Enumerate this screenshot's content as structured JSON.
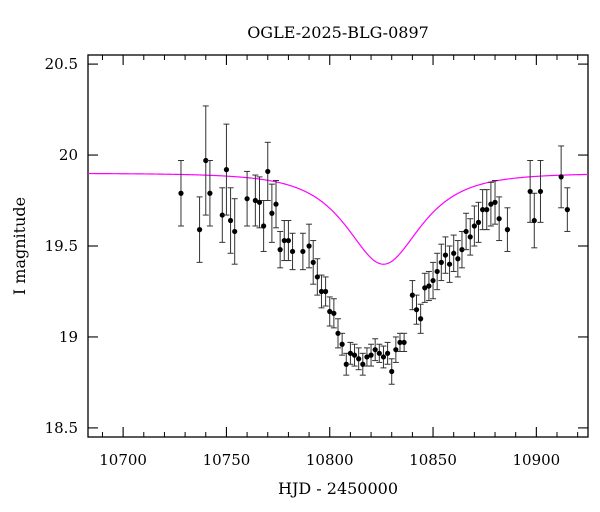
{
  "chart_data": {
    "type": "scatter",
    "title": "OGLE-2025-BLG-0897",
    "xlabel": "HJD - 2450000",
    "ylabel": "I magnitude",
    "xlim": [
      10683,
      10925
    ],
    "ylim": [
      20.55,
      18.45
    ],
    "y_inverted": true,
    "x_ticks": [
      10700,
      10750,
      10800,
      10850,
      10900
    ],
    "y_ticks": [
      18.5,
      19,
      19.5,
      20,
      20.5
    ],
    "x_tick_labels": [
      "10700",
      "10750",
      "10800",
      "10850",
      "10900"
    ],
    "y_tick_labels": [
      "18.5",
      "19",
      "19.5",
      "20",
      "20.5"
    ],
    "grid": false,
    "legend": "none",
    "colors": {
      "data": "#000000",
      "model": "#ff00ff"
    },
    "series": [
      {
        "kind": "data_with_errors",
        "x": [
          10728,
          10737,
          10740,
          10742,
          10748,
          10750,
          10752,
          10754,
          10760,
          10764,
          10766,
          10768,
          10770,
          10772,
          10774,
          10776,
          10778,
          10780,
          10782,
          10787,
          10790,
          10792,
          10794,
          10796,
          10798,
          10800,
          10802,
          10804,
          10806,
          10808,
          10810,
          10812,
          10814,
          10816,
          10818,
          10820,
          10822,
          10824,
          10826,
          10828,
          10830,
          10832,
          10834,
          10836,
          10840,
          10842,
          10844,
          10846,
          10848,
          10850,
          10852,
          10854,
          10856,
          10858,
          10860,
          10862,
          10864,
          10866,
          10868,
          10870,
          10872,
          10874,
          10876,
          10878,
          10880,
          10882,
          10886,
          10897,
          10899,
          10902,
          10912,
          10915
        ],
        "y": [
          19.79,
          19.59,
          19.97,
          19.79,
          19.67,
          19.92,
          19.64,
          19.58,
          19.76,
          19.75,
          19.74,
          19.61,
          19.91,
          19.68,
          19.73,
          19.48,
          19.53,
          19.53,
          19.47,
          19.47,
          19.5,
          19.41,
          19.33,
          19.25,
          19.25,
          19.14,
          19.13,
          19.02,
          18.96,
          18.85,
          18.91,
          18.9,
          18.88,
          18.85,
          18.89,
          18.9,
          18.93,
          18.91,
          18.89,
          18.91,
          18.81,
          18.93,
          18.97,
          18.97,
          19.23,
          19.15,
          19.1,
          19.27,
          19.28,
          19.31,
          19.36,
          19.41,
          19.45,
          19.4,
          19.46,
          19.43,
          19.48,
          19.58,
          19.55,
          19.61,
          19.63,
          19.7,
          19.7,
          19.73,
          19.74,
          19.65,
          19.59,
          19.8,
          19.64,
          19.8,
          19.88,
          19.7
        ],
        "yerr": [
          0.18,
          0.18,
          0.3,
          0.18,
          0.15,
          0.25,
          0.18,
          0.18,
          0.15,
          0.14,
          0.14,
          0.14,
          0.16,
          0.16,
          0.13,
          0.1,
          0.11,
          0.11,
          0.1,
          0.1,
          0.12,
          0.12,
          0.1,
          0.09,
          0.08,
          0.08,
          0.08,
          0.08,
          0.06,
          0.06,
          0.06,
          0.06,
          0.06,
          0.06,
          0.05,
          0.06,
          0.06,
          0.05,
          0.06,
          0.06,
          0.07,
          0.07,
          0.05,
          0.05,
          0.08,
          0.08,
          0.08,
          0.08,
          0.08,
          0.1,
          0.1,
          0.1,
          0.1,
          0.1,
          0.1,
          0.1,
          0.1,
          0.1,
          0.1,
          0.11,
          0.11,
          0.11,
          0.11,
          0.12,
          0.12,
          0.12,
          0.12,
          0.17,
          0.15,
          0.17,
          0.17,
          0.12
        ]
      },
      {
        "kind": "model_curve",
        "t0": 10826,
        "u0": 0.76,
        "tE": 25,
        "baseline_mag": 19.9
      }
    ]
  }
}
